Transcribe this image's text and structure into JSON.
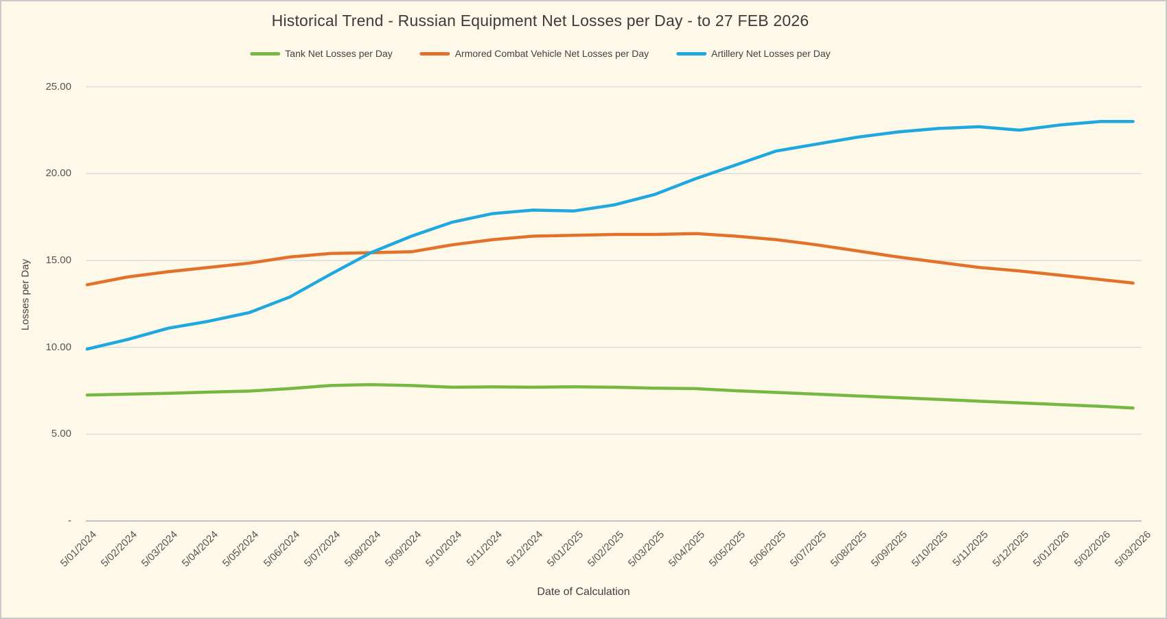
{
  "title": "Historical Trend - Russian Equipment Net Losses per Day - to 27 FEB 2026",
  "y_ticks": [
    "25.00",
    "20.00",
    "15.00",
    "10.00",
    "5.00",
    "-"
  ],
  "colors": {
    "background": "#FDF8E7",
    "border": "#C9C9C9",
    "gridline": "#DCDCDC",
    "axis_line": "#C1C1C1",
    "tick_text": "#555555",
    "title_text": "#3B3B3B",
    "tank": "#76B843",
    "acv": "#E2712B",
    "artillery": "#1FA8E0"
  },
  "chart_data": {
    "type": "line",
    "title": "Historical Trend - Russian Equipment Net Losses per Day - to 27 FEB 2026",
    "xlabel": "Date of Calculation",
    "ylabel": "Losses per Day",
    "ylim": [
      0,
      25
    ],
    "y_tick_step": 5,
    "y_tick_labels": [
      "-",
      "5.00",
      "10.00",
      "15.00",
      "20.00",
      "25.00"
    ],
    "grid": "horizontal",
    "legend_position": "top",
    "x_tick_rotation_deg": 45,
    "note": "Monthly samples at each labeled tick date; final data point is 27 FEB 2026, slightly before the last tick 5/03/2026",
    "categories": [
      "5/01/2024",
      "5/02/2024",
      "5/03/2024",
      "5/04/2024",
      "5/05/2024",
      "5/06/2024",
      "5/07/2024",
      "5/08/2024",
      "5/09/2024",
      "5/10/2024",
      "5/11/2024",
      "5/12/2024",
      "5/01/2025",
      "5/02/2025",
      "5/03/2025",
      "5/04/2025",
      "5/05/2025",
      "5/06/2025",
      "5/07/2025",
      "5/08/2025",
      "5/09/2025",
      "5/10/2025",
      "5/11/2025",
      "5/12/2025",
      "5/01/2026",
      "5/02/2026",
      "5/03/2026"
    ],
    "series": [
      {
        "name": "Tank Net Losses per Day",
        "color": "#76B843",
        "values": [
          7.25,
          7.3,
          7.35,
          7.42,
          7.48,
          7.62,
          7.8,
          7.85,
          7.8,
          7.7,
          7.72,
          7.7,
          7.73,
          7.7,
          7.65,
          7.62,
          7.5,
          7.4,
          7.3,
          7.2,
          7.1,
          7.0,
          6.9,
          6.8,
          6.7,
          6.6,
          6.5
        ]
      },
      {
        "name": "Armored Combat Vehicle Net Losses per Day",
        "color": "#E2712B",
        "values": [
          13.6,
          14.05,
          14.35,
          14.6,
          14.85,
          15.2,
          15.4,
          15.45,
          15.5,
          15.9,
          16.2,
          16.4,
          16.45,
          16.5,
          16.5,
          16.55,
          16.4,
          16.2,
          15.9,
          15.55,
          15.2,
          14.9,
          14.6,
          14.4,
          14.15,
          13.9,
          13.7
        ]
      },
      {
        "name": "Artillery Net Losses per Day",
        "color": "#1FA8E0",
        "values": [
          9.9,
          10.45,
          11.1,
          11.5,
          12.0,
          12.9,
          14.2,
          15.45,
          16.4,
          17.2,
          17.7,
          17.9,
          17.85,
          18.2,
          18.8,
          19.7,
          20.5,
          21.3,
          21.7,
          22.1,
          22.4,
          22.6,
          22.7,
          22.5,
          22.8,
          23.0,
          23.0
        ]
      }
    ]
  }
}
